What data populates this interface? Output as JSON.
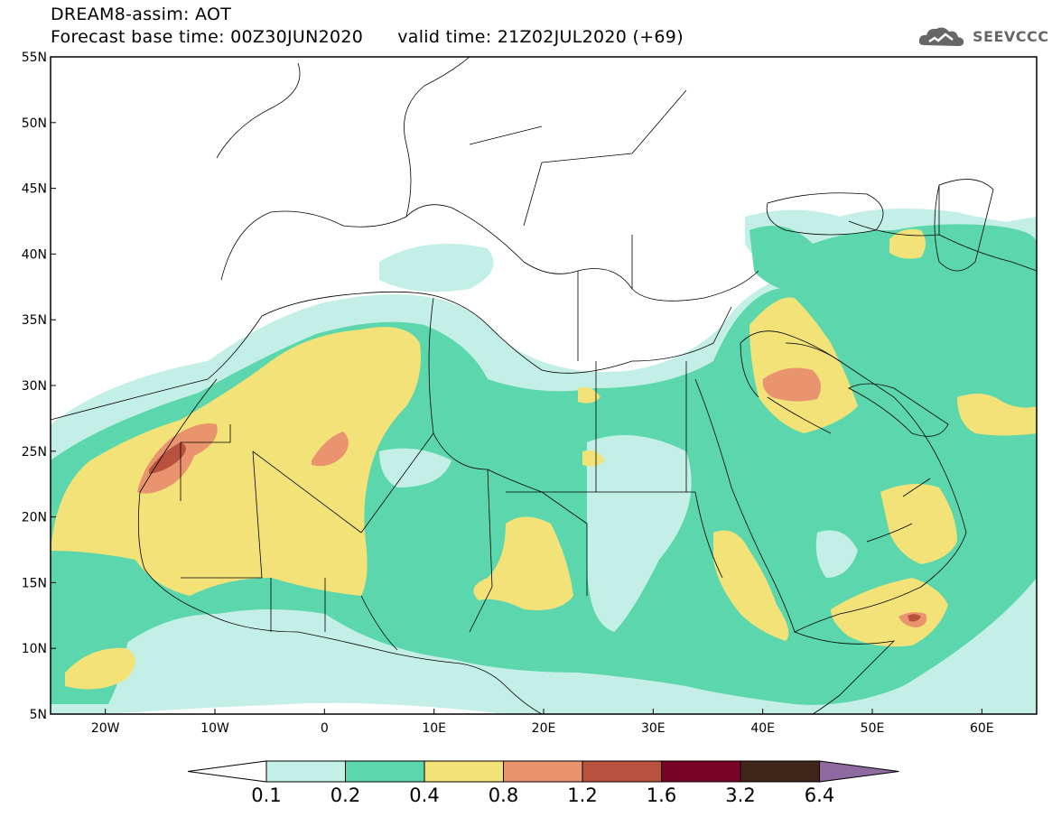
{
  "header": {
    "line1": "DREAM8-assim: AOT",
    "line2": "Forecast base time: 00Z30JUN2020      valid time: 21Z02JUL2020 (+69)"
  },
  "logo": {
    "text": "SEEVCCC",
    "icon": "cloud-icon"
  },
  "map": {
    "lat_ticks": [
      "55N",
      "50N",
      "45N",
      "40N",
      "35N",
      "30N",
      "25N",
      "20N",
      "15N",
      "10N",
      "5N"
    ],
    "lon_ticks": [
      "20W",
      "10W",
      "0",
      "10E",
      "20E",
      "30E",
      "40E",
      "50E",
      "60E"
    ],
    "extent": {
      "lon": [
        -25,
        65
      ],
      "lat": [
        5,
        55
      ]
    },
    "colors": {
      "c01": "#c4efe7",
      "c02": "#5bd6ad",
      "c04": "#f2e278",
      "c08": "#e9936f",
      "c12": "#b9513f",
      "c16": "#7a0428",
      "c32": "#3f2618",
      "c64": "#8e6aa1"
    }
  },
  "colorbar": {
    "labels": [
      "0.1",
      "0.2",
      "0.4",
      "0.8",
      "1.2",
      "1.6",
      "3.2",
      "6.4"
    ],
    "colors": [
      "#ffffff",
      "#c4efe7",
      "#5bd6ad",
      "#f2e278",
      "#e9936f",
      "#b9513f",
      "#7a0428",
      "#3f2618",
      "#8e6aa1"
    ]
  }
}
